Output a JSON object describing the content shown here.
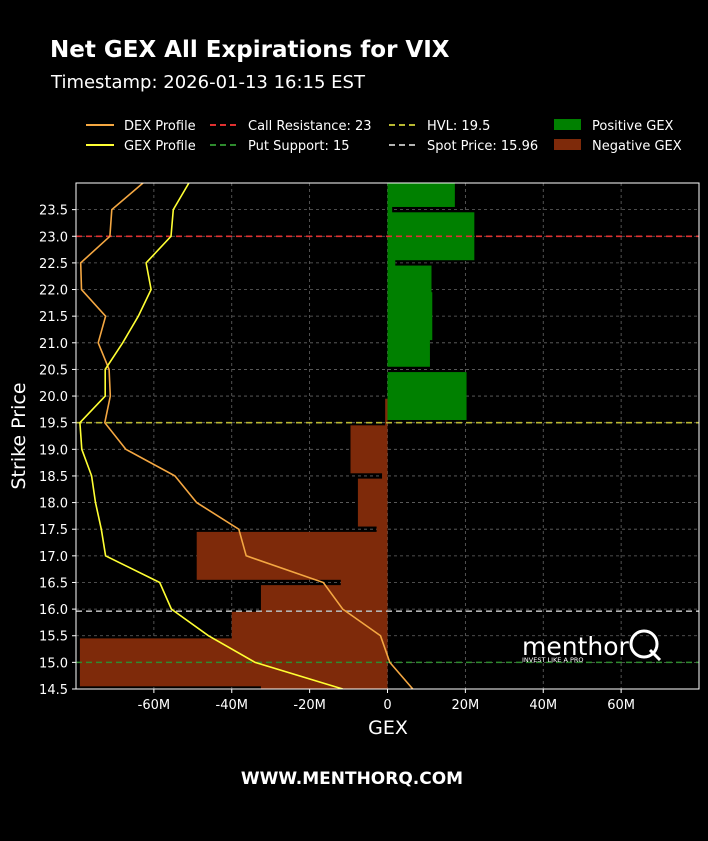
{
  "title": "Net GEX All Expirations for VIX",
  "subtitle": "Timestamp: 2026-01-13 16:15 EST",
  "footer": "WWW.MENTHORQ.COM",
  "logo": {
    "name": "menthor",
    "tagline": "INVEST LIKE A PRO"
  },
  "colors": {
    "background": "#000000",
    "positive_gex": "#008000",
    "negative_gex": "#7e2a0a",
    "dex_line": "#f4a742",
    "gex_line": "#ffff33",
    "call_resistance": "#e03030",
    "put_support": "#2e8b2e",
    "hvl": "#b8b832",
    "spot": "#b4b4b4",
    "grid": "#666666"
  },
  "legend": {
    "dex": "DEX Profile",
    "gex": "GEX Profile",
    "call_resistance": "Call Resistance: 23",
    "put_support": "Put Support: 15",
    "hvl": "HVL: 19.5",
    "spot": "Spot Price: 15.96",
    "positive": "Positive GEX",
    "negative": "Negative GEX"
  },
  "chart_data": {
    "type": "bar",
    "orientation": "horizontal",
    "title": "Net GEX All Expirations for VIX",
    "xlabel": "GEX",
    "ylabel": "Strike Price",
    "xlim": [
      -80,
      80
    ],
    "x_unit": "M",
    "ylim": [
      14.5,
      24.0
    ],
    "x_ticks": [
      -60,
      -40,
      -20,
      0,
      20,
      40,
      60
    ],
    "x_tick_labels": [
      "-60M",
      "-40M",
      "-20M",
      "0",
      "20M",
      "40M",
      "60M"
    ],
    "y_ticks": [
      14.5,
      15.0,
      15.5,
      16.0,
      16.5,
      17.0,
      17.5,
      18.0,
      18.5,
      19.0,
      19.5,
      20.0,
      20.5,
      21.0,
      21.5,
      22.0,
      22.5,
      23.0,
      23.5
    ],
    "y_tick_labels": [
      "14.5",
      "15.0",
      "15.5",
      "16.0",
      "16.5",
      "17.0",
      "17.5",
      "18.0",
      "18.5",
      "19.0",
      "19.5",
      "20.0",
      "20.5",
      "21.0",
      "21.5",
      "22.0",
      "22.5",
      "23.0",
      "23.5"
    ],
    "grid": true,
    "bars": [
      {
        "strike": 14.5,
        "gex": -32.5
      },
      {
        "strike": 15.0,
        "gex": -79.0
      },
      {
        "strike": 15.5,
        "gex": -40.0
      },
      {
        "strike": 16.0,
        "gex": -32.5
      },
      {
        "strike": 16.5,
        "gex": -12.0
      },
      {
        "strike": 17.0,
        "gex": -49.0
      },
      {
        "strike": 17.5,
        "gex": -2.8
      },
      {
        "strike": 18.0,
        "gex": -7.6
      },
      {
        "strike": 18.5,
        "gex": -1.4
      },
      {
        "strike": 19.0,
        "gex": -9.5
      },
      {
        "strike": 19.5,
        "gex": -0.6
      },
      {
        "strike": 20.0,
        "gex": 20.3
      },
      {
        "strike": 21.0,
        "gex": 10.9
      },
      {
        "strike": 21.5,
        "gex": 11.5
      },
      {
        "strike": 22.0,
        "gex": 11.3
      },
      {
        "strike": 22.5,
        "gex": 2.0
      },
      {
        "strike": 23.0,
        "gex": 22.3
      },
      {
        "strike": 23.5,
        "gex": 1.2
      },
      {
        "strike": 24.0,
        "gex": 17.3
      }
    ],
    "series": [
      {
        "name": "DEX Profile",
        "x": [
          6.5,
          0.6,
          -1.8,
          -11.5,
          -16.5,
          -36.3,
          -38.2,
          -49.0,
          -54.6,
          -67.2,
          -72.6,
          -71.2,
          -71.5,
          -74.3,
          -72.4,
          -78.6,
          -78.8,
          -71.3,
          -70.8,
          -62.8
        ],
        "y": [
          14.5,
          15.0,
          15.5,
          16.0,
          16.5,
          17.0,
          17.5,
          18.0,
          18.5,
          19.0,
          19.5,
          20.0,
          20.5,
          21.0,
          21.5,
          22.0,
          22.5,
          23.0,
          23.5,
          24.0
        ]
      },
      {
        "name": "GEX Profile",
        "x": [
          -11.5,
          -34.0,
          -46.0,
          -55.5,
          -58.5,
          -72.4,
          -73.5,
          -75.0,
          -76.0,
          -78.5,
          -79.0,
          -72.5,
          -72.5,
          -68.0,
          -64.0,
          -60.7,
          -62.0,
          -55.6,
          -55.0,
          -51.0
        ],
        "y": [
          14.5,
          15.0,
          15.5,
          16.0,
          16.5,
          17.0,
          17.5,
          18.0,
          18.5,
          19.0,
          19.5,
          20.0,
          20.5,
          21.0,
          21.5,
          22.0,
          22.5,
          23.0,
          23.5,
          24.0
        ]
      }
    ],
    "reference_lines": [
      {
        "name": "Call Resistance",
        "value": 23.0
      },
      {
        "name": "Put Support",
        "value": 15.0
      },
      {
        "name": "HVL",
        "value": 19.5
      },
      {
        "name": "Spot Price",
        "value": 15.96
      }
    ]
  }
}
